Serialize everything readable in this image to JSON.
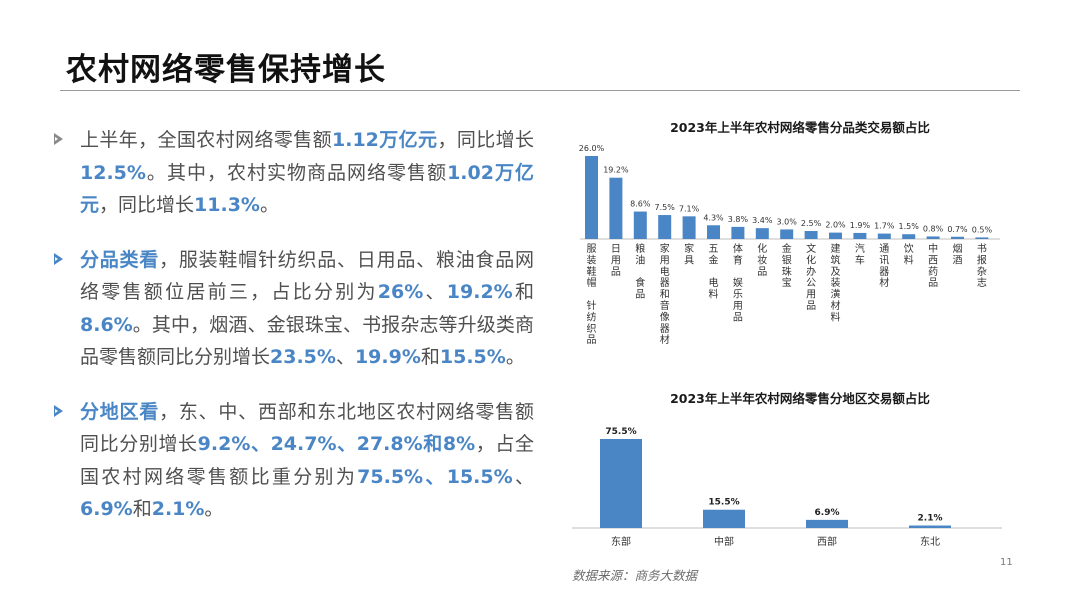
{
  "page": {
    "title": "农村网络零售保持增长",
    "page_number": "11",
    "source": "数据来源：商务大数据"
  },
  "bullets": [
    {
      "parts": [
        {
          "t": "上半年，全国农村网络零售额",
          "hl": false
        },
        {
          "t": "1.12万亿元",
          "hl": true
        },
        {
          "t": "，同比增长",
          "hl": false
        },
        {
          "t": "12.5%",
          "hl": true
        },
        {
          "t": "。其中，农村实物商品网络零售额",
          "hl": false
        },
        {
          "t": "1.02万亿元",
          "hl": true
        },
        {
          "t": "，同比增长",
          "hl": false
        },
        {
          "t": "11.3%",
          "hl": true
        },
        {
          "t": "。",
          "hl": false
        }
      ]
    },
    {
      "parts": [
        {
          "t": "分品类看",
          "hl": true
        },
        {
          "t": "，服装鞋帽针纺织品、日用品、粮油食品网络零售额位居前三，占比分别为",
          "hl": false
        },
        {
          "t": "26%",
          "hl": true
        },
        {
          "t": "、",
          "hl": false
        },
        {
          "t": "19.2%",
          "hl": true
        },
        {
          "t": "和",
          "hl": false
        },
        {
          "t": "8.6%",
          "hl": true
        },
        {
          "t": "。其中，烟酒、金银珠宝、书报杂志等升级类商品零售额同比分别增长",
          "hl": false
        },
        {
          "t": "23.5%",
          "hl": true
        },
        {
          "t": "、",
          "hl": false
        },
        {
          "t": "19.9%",
          "hl": true
        },
        {
          "t": "和",
          "hl": false
        },
        {
          "t": "15.5%",
          "hl": true
        },
        {
          "t": "。",
          "hl": false
        }
      ]
    },
    {
      "parts": [
        {
          "t": "分地区看",
          "hl": true
        },
        {
          "t": "，东、中、西部和东北地区农村网络零售额同比分别增长",
          "hl": false
        },
        {
          "t": "9.2%、24.7%、27.8%和8%",
          "hl": true
        },
        {
          "t": "，占全国农村网络零售额比重分别为",
          "hl": false
        },
        {
          "t": "75.5%、15.5%",
          "hl": true
        },
        {
          "t": "、",
          "hl": false
        },
        {
          "t": "6.9%",
          "hl": true
        },
        {
          "t": "和",
          "hl": false
        },
        {
          "t": "2.1%",
          "hl": true
        },
        {
          "t": "。",
          "hl": false
        }
      ]
    }
  ],
  "colors": {
    "bar": "#4a86c5",
    "highlight": "#4a86c5"
  },
  "chart_data": [
    {
      "type": "bar",
      "title": "2023年上半年农村网络零售分品类交易额占比",
      "categories": [
        "服装鞋帽 针纺织品",
        "日用品",
        "粮油 食品",
        "家用电器和音像器材",
        "家具",
        "五金 电料",
        "体育 娱乐用品",
        "化妆品",
        "金银珠宝",
        "文化办公用品",
        "建筑及装潢材料",
        "汽车",
        "通讯器材",
        "饮料",
        "中西药品",
        "烟酒",
        "书报杂志"
      ],
      "values": [
        26.0,
        19.2,
        8.6,
        7.5,
        7.1,
        4.3,
        3.8,
        3.4,
        3.0,
        2.5,
        2.0,
        1.9,
        1.7,
        1.5,
        0.8,
        0.7,
        0.5
      ],
      "data_labels": [
        "26.0%",
        "19.2%",
        "8.6%",
        "7.5%",
        "7.1%",
        "4.3%",
        "3.8%",
        "3.4%",
        "3.0%",
        "2.5%",
        "2.0%",
        "1.9%",
        "1.7%",
        "1.5%",
        "0.8%",
        "0.7%",
        "0.5%"
      ],
      "ylim": [
        0,
        28
      ],
      "grid": false
    },
    {
      "type": "bar",
      "title": "2023年上半年农村网络零售分地区交易额占比",
      "categories": [
        "东部",
        "中部",
        "西部",
        "东北"
      ],
      "values": [
        75.5,
        15.5,
        6.9,
        2.1
      ],
      "data_labels": [
        "75.5%",
        "15.5%",
        "6.9%",
        "2.1%"
      ],
      "ylim": [
        0,
        80
      ],
      "grid": false
    }
  ]
}
